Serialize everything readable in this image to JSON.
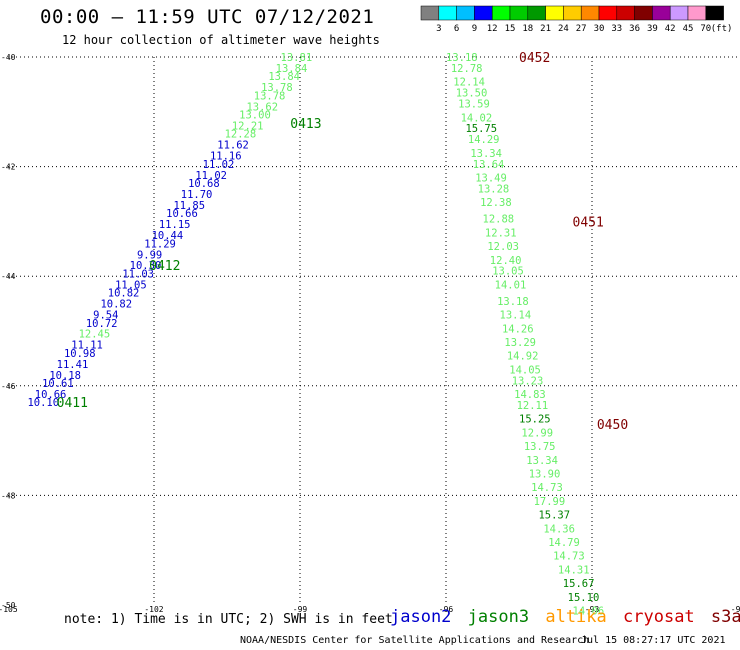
{
  "header": {
    "title": "00:00 – 11:59 UTC 07/12/2021",
    "subtitle": "12 hour collection of altimeter wave heights"
  },
  "footer": {
    "note": "note: 1) Time is in UTC; 2) SWH is in feet",
    "credit": "NOAA/NESDIS Center for Satellite Applications and Research",
    "generated": "Jul 15 08:27:17 UTC 2021"
  },
  "legend": {
    "satellites": [
      {
        "name": "jason2",
        "color": "#0000cc"
      },
      {
        "name": "jason3",
        "color": "#008000"
      },
      {
        "name": "altika",
        "color": "#ff9900"
      },
      {
        "name": "cryosat",
        "color": "#cc0000"
      },
      {
        "name": "s3a",
        "color": "#800000"
      }
    ]
  },
  "color_scale": {
    "unit": "(ft)",
    "levels": [
      {
        "label": "3",
        "color": "#808080"
      },
      {
        "label": "6",
        "color": "#00ffff"
      },
      {
        "label": "9",
        "color": "#00bfff"
      },
      {
        "label": "12",
        "color": "#0000ff"
      },
      {
        "label": "15",
        "color": "#00ff00"
      },
      {
        "label": "18",
        "color": "#00cc00"
      },
      {
        "label": "21",
        "color": "#009900"
      },
      {
        "label": "24",
        "color": "#ffff00"
      },
      {
        "label": "27",
        "color": "#ffcc00"
      },
      {
        "label": "30",
        "color": "#ff8800"
      },
      {
        "label": "33",
        "color": "#ff0000"
      },
      {
        "label": "36",
        "color": "#cc0000"
      },
      {
        "label": "39",
        "color": "#800000"
      },
      {
        "label": "42",
        "color": "#990099"
      },
      {
        "label": "45",
        "color": "#cc99ff"
      },
      {
        "label": "70",
        "color": "#ff99cc"
      },
      {
        "label": "",
        "color": "#000000"
      }
    ]
  },
  "chart_data": {
    "type": "scatter",
    "x_ticks": [
      -105,
      -102,
      -99,
      -96,
      -93,
      -90
    ],
    "y_ticks": [
      -40,
      -42,
      -44,
      -46,
      -48,
      -50
    ],
    "xlim": [
      -105,
      -90
    ],
    "ylim": [
      -50,
      -40
    ],
    "grid": true,
    "time_labels": [
      {
        "label": "0452",
        "lon": -94.5,
        "lat": -40.0,
        "color": "#800000"
      },
      {
        "label": "0413",
        "lon": -99.2,
        "lat": -41.2,
        "color": "#008000"
      },
      {
        "label": "0451",
        "lon": -93.4,
        "lat": -43.0,
        "color": "#800000"
      },
      {
        "label": "0412",
        "lon": -102.1,
        "lat": -43.8,
        "color": "#008000"
      },
      {
        "label": "0450",
        "lon": -92.9,
        "lat": -46.7,
        "color": "#800000"
      },
      {
        "label": "0411",
        "lon": -104.0,
        "lat": -46.3,
        "color": "#008000"
      }
    ],
    "series": [
      {
        "name": "jason3",
        "points": [
          {
            "lon": -99.4,
            "lat": -40.0,
            "swh": "13.81",
            "color": "#66ee66"
          },
          {
            "lon": -99.5,
            "lat": -40.2,
            "swh": "13.84",
            "color": "#66ee66"
          },
          {
            "lon": -99.65,
            "lat": -40.35,
            "swh": "13.84",
            "color": "#66ee66"
          },
          {
            "lon": -99.8,
            "lat": -40.55,
            "swh": "13.78",
            "color": "#66ee66"
          },
          {
            "lon": -99.95,
            "lat": -40.7,
            "swh": "13.78",
            "color": "#66ee66"
          },
          {
            "lon": -100.1,
            "lat": -40.9,
            "swh": "13.62",
            "color": "#66ee66"
          },
          {
            "lon": -100.25,
            "lat": -41.05,
            "swh": "13.00",
            "color": "#66ee66"
          },
          {
            "lon": -100.4,
            "lat": -41.25,
            "swh": "12.21",
            "color": "#66ee66"
          },
          {
            "lon": -100.55,
            "lat": -41.4,
            "swh": "12.28",
            "color": "#66ee66"
          },
          {
            "lon": -100.7,
            "lat": -41.6,
            "swh": "11.62",
            "color": "#0000cc"
          },
          {
            "lon": -100.85,
            "lat": -41.8,
            "swh": "11.16",
            "color": "#0000cc"
          },
          {
            "lon": -101.0,
            "lat": -41.95,
            "swh": "11.02",
            "color": "#0000cc"
          },
          {
            "lon": -101.15,
            "lat": -42.15,
            "swh": "11.02",
            "color": "#0000cc"
          },
          {
            "lon": -101.3,
            "lat": -42.3,
            "swh": "10.68",
            "color": "#0000cc"
          },
          {
            "lon": -101.45,
            "lat": -42.5,
            "swh": "11.70",
            "color": "#0000cc"
          },
          {
            "lon": -101.6,
            "lat": -42.7,
            "swh": "11.85",
            "color": "#0000cc"
          },
          {
            "lon": -101.75,
            "lat": -42.85,
            "swh": "10.66",
            "color": "#0000cc"
          },
          {
            "lon": -101.9,
            "lat": -43.05,
            "swh": "11.15",
            "color": "#0000cc"
          },
          {
            "lon": -102.05,
            "lat": -43.25,
            "swh": "10.44",
            "color": "#0000cc"
          },
          {
            "lon": -102.2,
            "lat": -43.4,
            "swh": "11.29",
            "color": "#0000cc"
          },
          {
            "lon": -102.35,
            "lat": -43.6,
            "swh": "9.99",
            "color": "#0000cc"
          },
          {
            "lon": -102.5,
            "lat": -43.8,
            "swh": "10.30",
            "color": "#0000cc"
          },
          {
            "lon": -102.65,
            "lat": -43.95,
            "swh": "11.03",
            "color": "#0000cc"
          },
          {
            "lon": -102.8,
            "lat": -44.15,
            "swh": "11.05",
            "color": "#0000cc"
          },
          {
            "lon": -102.95,
            "lat": -44.3,
            "swh": "10.82",
            "color": "#0000cc"
          },
          {
            "lon": -103.1,
            "lat": -44.5,
            "swh": "10.82",
            "color": "#0000cc"
          },
          {
            "lon": -103.25,
            "lat": -44.7,
            "swh": "9.54",
            "color": "#0000cc"
          },
          {
            "lon": -103.4,
            "lat": -44.85,
            "swh": "10.72",
            "color": "#0000cc"
          },
          {
            "lon": -103.55,
            "lat": -45.05,
            "swh": "12.45",
            "color": "#66ee66"
          },
          {
            "lon": -103.7,
            "lat": -45.25,
            "swh": "11.11",
            "color": "#0000cc"
          },
          {
            "lon": -103.85,
            "lat": -45.4,
            "swh": "10.98",
            "color": "#0000cc"
          },
          {
            "lon": -104.0,
            "lat": -45.6,
            "swh": "11.41",
            "color": "#0000cc"
          },
          {
            "lon": -104.15,
            "lat": -45.8,
            "swh": "10.18",
            "color": "#0000cc"
          },
          {
            "lon": -104.3,
            "lat": -45.95,
            "swh": "10.61",
            "color": "#0000cc"
          },
          {
            "lon": -104.45,
            "lat": -46.15,
            "swh": "10.66",
            "color": "#0000cc"
          },
          {
            "lon": -104.6,
            "lat": -46.3,
            "swh": "10.10",
            "color": "#0000cc"
          }
        ]
      },
      {
        "name": "s3a",
        "points": [
          {
            "lon": -96.0,
            "lat": -40.0,
            "swh": "13.18",
            "color": "#66ee66"
          },
          {
            "lon": -95.9,
            "lat": -40.2,
            "swh": "12.78",
            "color": "#66ee66"
          },
          {
            "lon": -95.85,
            "lat": -40.45,
            "swh": "12.14",
            "color": "#66ee66"
          },
          {
            "lon": -95.8,
            "lat": -40.65,
            "swh": "13.50",
            "color": "#66ee66"
          },
          {
            "lon": -95.75,
            "lat": -40.85,
            "swh": "13.59",
            "color": "#66ee66"
          },
          {
            "lon": -95.7,
            "lat": -41.1,
            "swh": "14.02",
            "color": "#66ee66"
          },
          {
            "lon": -95.6,
            "lat": -41.3,
            "swh": "15.75",
            "color": "#008000"
          },
          {
            "lon": -95.55,
            "lat": -41.5,
            "swh": "14.29",
            "color": "#66ee66"
          },
          {
            "lon": -95.5,
            "lat": -41.75,
            "swh": "13.34",
            "color": "#66ee66"
          },
          {
            "lon": -95.45,
            "lat": -41.95,
            "swh": "13.64",
            "color": "#66ee66"
          },
          {
            "lon": -95.4,
            "lat": -42.2,
            "swh": "13.49",
            "color": "#66ee66"
          },
          {
            "lon": -95.35,
            "lat": -42.4,
            "swh": "13.28",
            "color": "#66ee66"
          },
          {
            "lon": -95.3,
            "lat": -42.65,
            "swh": "12.38",
            "color": "#66ee66"
          },
          {
            "lon": -95.25,
            "lat": -42.95,
            "swh": "12.88",
            "color": "#66ee66"
          },
          {
            "lon": -95.2,
            "lat": -43.2,
            "swh": "12.31",
            "color": "#66ee66"
          },
          {
            "lon": -95.15,
            "lat": -43.45,
            "swh": "12.03",
            "color": "#66ee66"
          },
          {
            "lon": -95.1,
            "lat": -43.7,
            "swh": "12.40",
            "color": "#66ee66"
          },
          {
            "lon": -95.05,
            "lat": -43.9,
            "swh": "13.05",
            "color": "#66ee66"
          },
          {
            "lon": -95.0,
            "lat": -44.15,
            "swh": "14.01",
            "color": "#66ee66"
          },
          {
            "lon": -94.95,
            "lat": -44.45,
            "swh": "13.18",
            "color": "#66ee66"
          },
          {
            "lon": -94.9,
            "lat": -44.7,
            "swh": "13.14",
            "color": "#66ee66"
          },
          {
            "lon": -94.85,
            "lat": -44.95,
            "swh": "14.26",
            "color": "#66ee66"
          },
          {
            "lon": -94.8,
            "lat": -45.2,
            "swh": "13.29",
            "color": "#66ee66"
          },
          {
            "lon": -94.75,
            "lat": -45.45,
            "swh": "14.92",
            "color": "#66ee66"
          },
          {
            "lon": -94.7,
            "lat": -45.7,
            "swh": "14.05",
            "color": "#66ee66"
          },
          {
            "lon": -94.65,
            "lat": -45.9,
            "swh": "13.23",
            "color": "#66ee66"
          },
          {
            "lon": -94.6,
            "lat": -46.15,
            "swh": "14.83",
            "color": "#66ee66"
          },
          {
            "lon": -94.55,
            "lat": -46.35,
            "swh": "12.11",
            "color": "#66ee66"
          },
          {
            "lon": -94.5,
            "lat": -46.6,
            "swh": "15.25",
            "color": "#008000"
          },
          {
            "lon": -94.45,
            "lat": -46.85,
            "swh": "12.99",
            "color": "#66ee66"
          },
          {
            "lon": -94.4,
            "lat": -47.1,
            "swh": "13.75",
            "color": "#66ee66"
          },
          {
            "lon": -94.35,
            "lat": -47.35,
            "swh": "13.34",
            "color": "#66ee66"
          },
          {
            "lon": -94.3,
            "lat": -47.6,
            "swh": "13.90",
            "color": "#66ee66"
          },
          {
            "lon": -94.25,
            "lat": -47.85,
            "swh": "14.73",
            "color": "#66ee66"
          },
          {
            "lon": -94.2,
            "lat": -48.1,
            "swh": "17.99",
            "color": "#66ee66"
          },
          {
            "lon": -94.1,
            "lat": -48.35,
            "swh": "15.37",
            "color": "#008000"
          },
          {
            "lon": -94.0,
            "lat": -48.6,
            "swh": "14.36",
            "color": "#66ee66"
          },
          {
            "lon": -93.9,
            "lat": -48.85,
            "swh": "14.79",
            "color": "#66ee66"
          },
          {
            "lon": -93.8,
            "lat": -49.1,
            "swh": "14.73",
            "color": "#66ee66"
          },
          {
            "lon": -93.7,
            "lat": -49.35,
            "swh": "14.31",
            "color": "#66ee66"
          },
          {
            "lon": -93.6,
            "lat": -49.6,
            "swh": "15.67",
            "color": "#008000"
          },
          {
            "lon": -93.5,
            "lat": -49.85,
            "swh": "15.10",
            "color": "#008000"
          },
          {
            "lon": -93.4,
            "lat": -50.1,
            "swh": "14.06",
            "color": "#66ee66"
          }
        ]
      }
    ]
  }
}
